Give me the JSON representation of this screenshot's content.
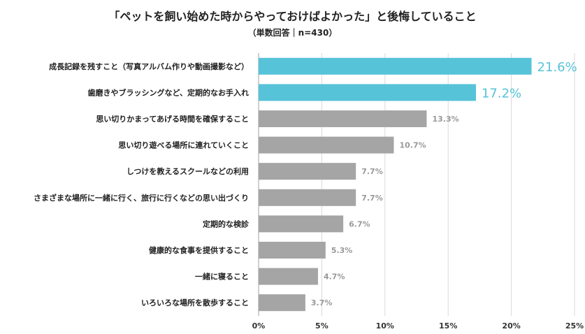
{
  "chart_data": {
    "type": "bar",
    "orientation": "horizontal",
    "title": "「ペットを飼い始めた時からやっておけばよかった」と後悔していること",
    "subtitle": "（単数回答｜n=430）",
    "categories": [
      "成長記録を残すこと（写真アルバム作りや動画撮影など）",
      "歯磨きやブラッシングなど、定期的なお手入れ",
      "思い切りかまってあげる時間を確保すること",
      "思い切り遊べる場所に連れていくこと",
      "しつけを教えるスクールなどの利用",
      "さまざまな場所に一緒に行く、旅行に行くなどの思い出づくり",
      "定期的な検診",
      "健康的な食事を提供すること",
      "一緒に寝ること",
      "いろいろな場所を散歩すること"
    ],
    "values": [
      21.6,
      17.2,
      13.3,
      10.7,
      7.7,
      7.7,
      6.7,
      5.3,
      4.7,
      3.7
    ],
    "data_labels": [
      "21.6%",
      "17.2%",
      "13.3%",
      "10.7%",
      "7.7%",
      "7.7%",
      "6.7%",
      "5.3%",
      "4.7%",
      "3.7%"
    ],
    "xlim": [
      0,
      25
    ],
    "xticks": [
      "0%",
      "5%",
      "10%",
      "15%",
      "20%",
      "25%"
    ],
    "grid": true,
    "highlight_count": 2,
    "colors": {
      "highlight": "#56c3d9",
      "default": "#a5a5a5",
      "grid": "#d9d9d9",
      "default_label": "#999999"
    }
  }
}
